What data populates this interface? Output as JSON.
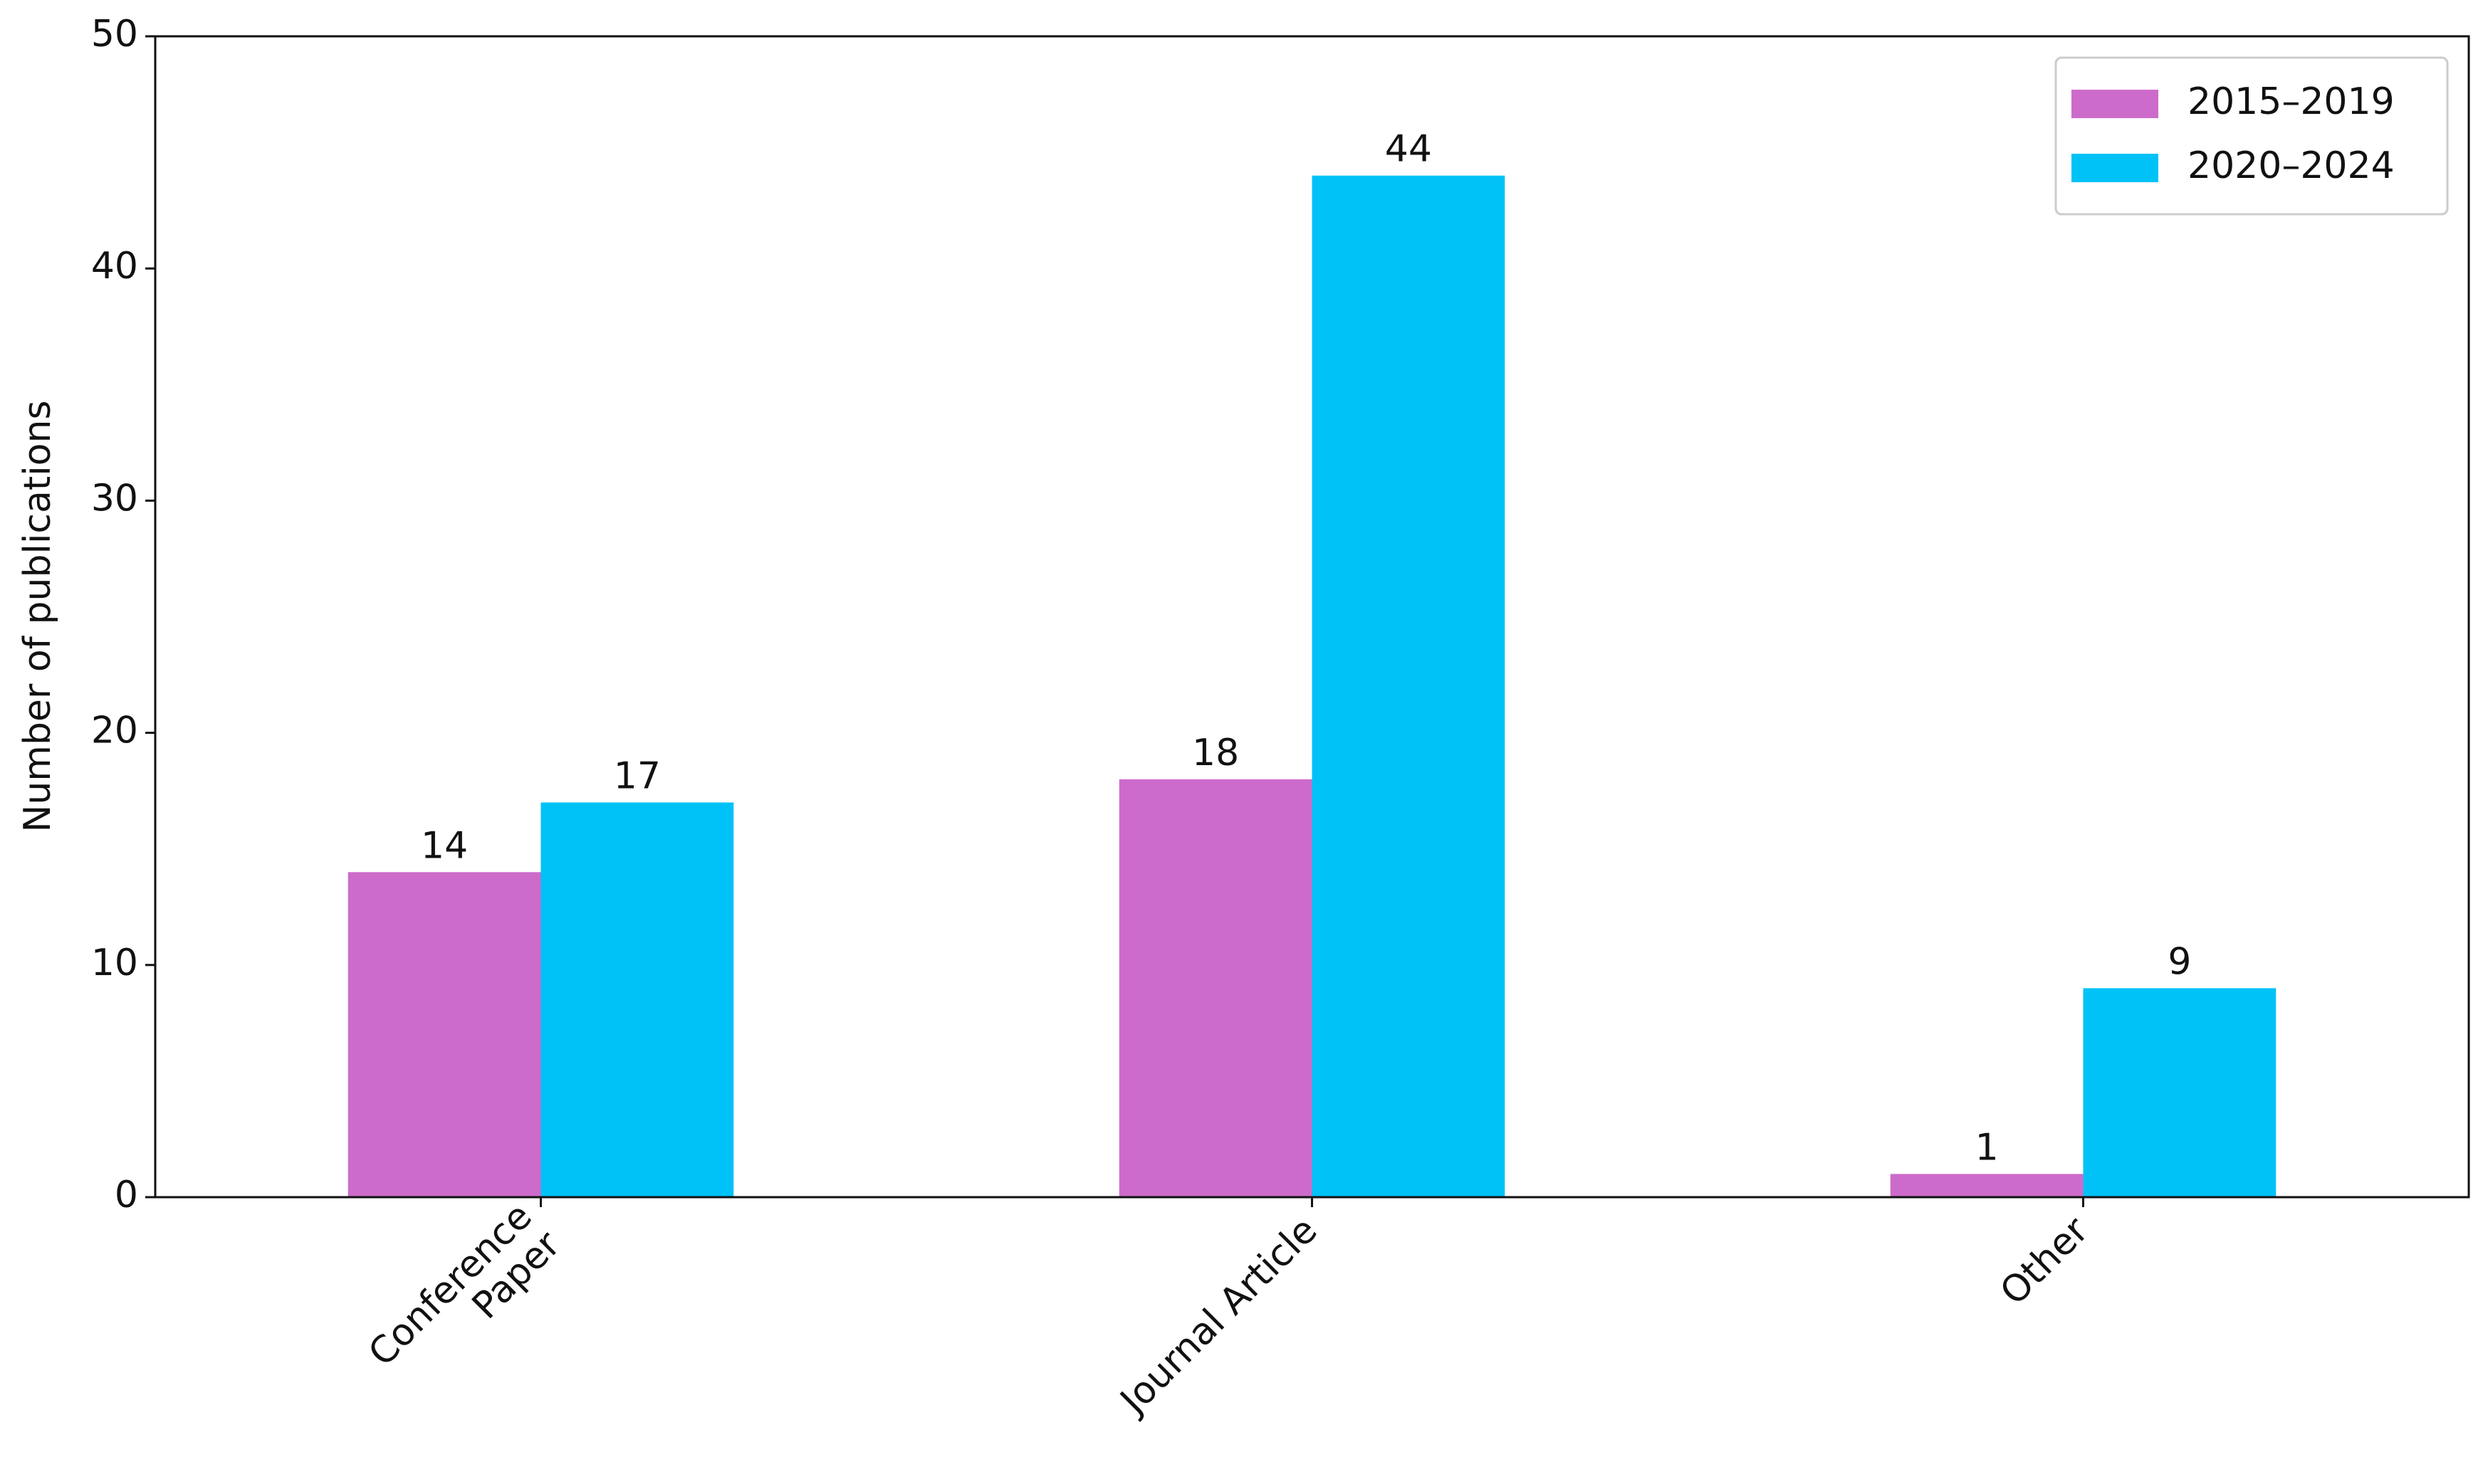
{
  "chart_data": {
    "type": "bar",
    "y_label": "Number of publications",
    "categories": [
      "Conference\nPaper",
      "Journal Article",
      "Other"
    ],
    "series": [
      {
        "name": "2015–2019",
        "color": "#cd6bcb",
        "values": [
          14,
          18,
          1
        ]
      },
      {
        "name": "2020–2024",
        "color": "#00c2f7",
        "values": [
          17,
          44,
          9
        ]
      }
    ],
    "ylim": [
      0,
      50
    ],
    "yticks": [
      0,
      10,
      20,
      30,
      40,
      50
    ],
    "legend": "upper right"
  }
}
